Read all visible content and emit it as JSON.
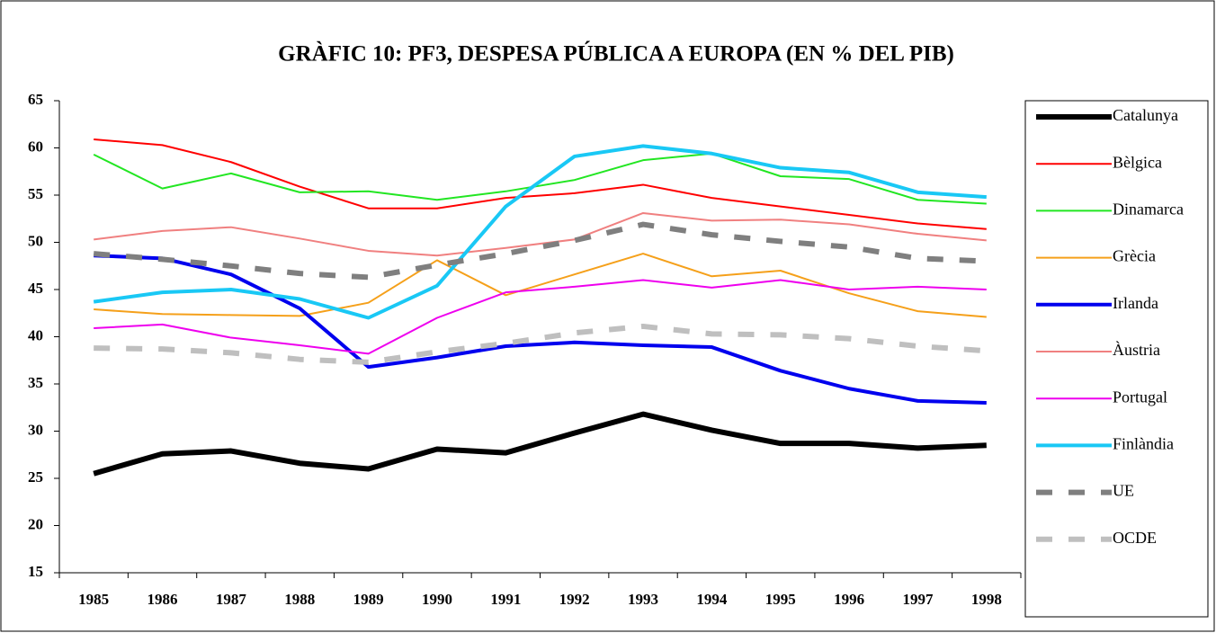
{
  "chart_data": {
    "type": "line",
    "title": "GRÀFIC 10: PF3, DESPESA PÚBLICA A EUROPA (EN % DEL PIB)",
    "categories": [
      "1985",
      "1986",
      "1987",
      "1988",
      "1989",
      "1990",
      "1991",
      "1992",
      "1993",
      "1994",
      "1995",
      "1996",
      "1997",
      "1998"
    ],
    "ylim": [
      15,
      65
    ],
    "yticks": [
      15,
      20,
      25,
      30,
      35,
      40,
      45,
      50,
      55,
      60,
      65
    ],
    "legend": "right",
    "series": [
      {
        "name": "Catalunya",
        "color": "#000000",
        "line_width": 6,
        "dashed": false,
        "values": [
          25.5,
          27.6,
          27.9,
          26.6,
          26.0,
          28.1,
          27.7,
          29.8,
          31.8,
          30.1,
          28.7,
          28.7,
          28.2,
          28.5
        ]
      },
      {
        "name": "Bèlgica",
        "color": "#ff0000",
        "line_width": 2,
        "dashed": false,
        "values": [
          60.9,
          60.3,
          58.5,
          55.9,
          53.6,
          53.6,
          54.7,
          55.2,
          56.1,
          54.7,
          53.8,
          52.9,
          52.0,
          51.4
        ]
      },
      {
        "name": "Dinamarca",
        "color": "#22e622",
        "line_width": 2,
        "dashed": false,
        "values": [
          59.3,
          55.7,
          57.3,
          55.3,
          55.4,
          54.5,
          55.4,
          56.6,
          58.7,
          59.4,
          57.0,
          56.7,
          54.5,
          54.1
        ]
      },
      {
        "name": "Grècia",
        "color": "#f5a01a",
        "line_width": 2,
        "dashed": false,
        "values": [
          42.9,
          42.4,
          42.3,
          42.2,
          43.6,
          48.1,
          44.4,
          46.6,
          48.8,
          46.4,
          47.0,
          44.6,
          42.7,
          42.1
        ]
      },
      {
        "name": "Irlanda",
        "color": "#0000ee",
        "line_width": 4,
        "dashed": false,
        "values": [
          48.6,
          48.3,
          46.6,
          43.0,
          36.8,
          37.8,
          39.0,
          39.4,
          39.1,
          38.9,
          36.4,
          34.5,
          33.2,
          33.0
        ]
      },
      {
        "name": "Àustria",
        "color": "#f08080",
        "line_width": 2,
        "dashed": false,
        "values": [
          50.3,
          51.2,
          51.6,
          50.4,
          49.1,
          48.6,
          49.4,
          50.3,
          53.1,
          52.3,
          52.4,
          51.9,
          50.9,
          50.2
        ]
      },
      {
        "name": "Portugal",
        "color": "#ee00ee",
        "line_width": 2,
        "dashed": false,
        "values": [
          40.9,
          41.3,
          39.9,
          39.1,
          38.2,
          42.0,
          44.7,
          45.3,
          46.0,
          45.2,
          46.0,
          45.0,
          45.3,
          45.0
        ]
      },
      {
        "name": "Finlàndia",
        "color": "#19c8f5",
        "line_width": 4,
        "dashed": false,
        "values": [
          43.7,
          44.7,
          45.0,
          44.0,
          42.0,
          45.4,
          53.8,
          59.1,
          60.2,
          59.4,
          57.9,
          57.4,
          55.3,
          54.8
        ]
      },
      {
        "name": "UE",
        "color": "#7f7f7f",
        "line_width": 6,
        "dashed": true,
        "values": [
          48.8,
          48.2,
          47.5,
          46.7,
          46.3,
          47.6,
          48.8,
          50.2,
          51.9,
          50.8,
          50.1,
          49.5,
          48.3,
          48.0
        ]
      },
      {
        "name": "OCDE",
        "color": "#bfbfbf",
        "line_width": 6,
        "dashed": true,
        "values": [
          38.8,
          38.7,
          38.3,
          37.6,
          37.3,
          38.4,
          39.3,
          40.4,
          41.1,
          40.3,
          40.2,
          39.8,
          39.0,
          38.5
        ]
      }
    ]
  }
}
